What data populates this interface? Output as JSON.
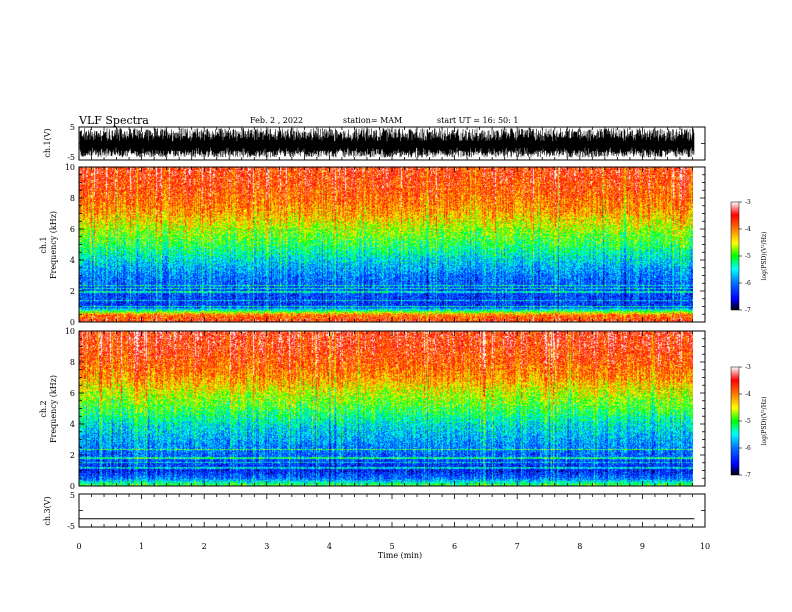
{
  "header": {
    "title": "VLF Spectra",
    "date": "Feb. 2 , 2022",
    "station": "station= MAM",
    "start": "start  UT =   16: 50: 1"
  },
  "chart_data": [
    {
      "type": "line",
      "panel": "ch1-waveform",
      "ylabel": "ch.1(V)",
      "ylim": [
        -5,
        5
      ],
      "yticks": [
        "5",
        "-5"
      ],
      "xlim": [
        0,
        10
      ],
      "description_values": {
        "amplitude_min": -5,
        "amplitude_max": 5,
        "data_end_min": 9.83
      }
    },
    {
      "type": "heatmap",
      "panel": "ch1-spectrogram",
      "ylabel": "ch.1\nFrequency (kHz)",
      "ylim": [
        0,
        10
      ],
      "yticks": [
        "0",
        "2",
        "4",
        "6",
        "8",
        "10"
      ],
      "xlim": [
        0,
        10
      ],
      "data_end_min": 9.83,
      "colorbar": {
        "label": "log(PSD)(V²/Hz)",
        "range": [
          -7,
          -3
        ],
        "ticks": [
          "-3",
          "-4",
          "-5",
          "-6",
          "-7"
        ]
      },
      "profile": [
        {
          "freq_khz": 0,
          "log_psd": -3.5
        },
        {
          "freq_khz": 0.5,
          "log_psd": -4.0
        },
        {
          "freq_khz": 1,
          "log_psd": -6.3
        },
        {
          "freq_khz": 2,
          "log_psd": -6.2
        },
        {
          "freq_khz": 3,
          "log_psd": -6.0
        },
        {
          "freq_khz": 4,
          "log_psd": -5.6
        },
        {
          "freq_khz": 5,
          "log_psd": -5.1
        },
        {
          "freq_khz": 6,
          "log_psd": -4.7
        },
        {
          "freq_khz": 7,
          "log_psd": -4.2
        },
        {
          "freq_khz": 8,
          "log_psd": -3.9
        },
        {
          "freq_khz": 9,
          "log_psd": -3.7
        },
        {
          "freq_khz": 10,
          "log_psd": -3.6
        }
      ]
    },
    {
      "type": "heatmap",
      "panel": "ch2-spectrogram",
      "ylabel": "ch.2\nFrequency (kHz)",
      "ylim": [
        0,
        10
      ],
      "yticks": [
        "0",
        "2",
        "4",
        "6",
        "8",
        "10"
      ],
      "xlim": [
        0,
        10
      ],
      "data_end_min": 9.83,
      "colorbar": {
        "label": "log(PSD)(V²/Hz)",
        "range": [
          -7,
          -3
        ],
        "ticks": [
          "-3",
          "-4",
          "-5",
          "-6",
          "-7"
        ]
      },
      "profile": [
        {
          "freq_khz": 0,
          "log_psd": -4.8
        },
        {
          "freq_khz": 0.5,
          "log_psd": -6.0
        },
        {
          "freq_khz": 1,
          "log_psd": -6.4
        },
        {
          "freq_khz": 2,
          "log_psd": -6.1
        },
        {
          "freq_khz": 3,
          "log_psd": -5.8
        },
        {
          "freq_khz": 4,
          "log_psd": -5.5
        },
        {
          "freq_khz": 5,
          "log_psd": -5.0
        },
        {
          "freq_khz": 6,
          "log_psd": -4.6
        },
        {
          "freq_khz": 7,
          "log_psd": -4.1
        },
        {
          "freq_khz": 8,
          "log_psd": -3.8
        },
        {
          "freq_khz": 9,
          "log_psd": -3.6
        },
        {
          "freq_khz": 10,
          "log_psd": -3.5
        }
      ]
    },
    {
      "type": "line",
      "panel": "ch3-waveform",
      "ylabel": "ch.3(V)",
      "ylim": [
        -5,
        5
      ],
      "yticks": [
        "5",
        "-5"
      ],
      "xlim": [
        0,
        10
      ],
      "x": [
        0,
        9.83
      ],
      "y": [
        -2.5,
        -2.5
      ]
    }
  ],
  "xaxis": {
    "label": "Time (min)",
    "ticks": [
      "0",
      "1",
      "2",
      "3",
      "4",
      "5",
      "6",
      "7",
      "8",
      "9",
      "10"
    ]
  }
}
